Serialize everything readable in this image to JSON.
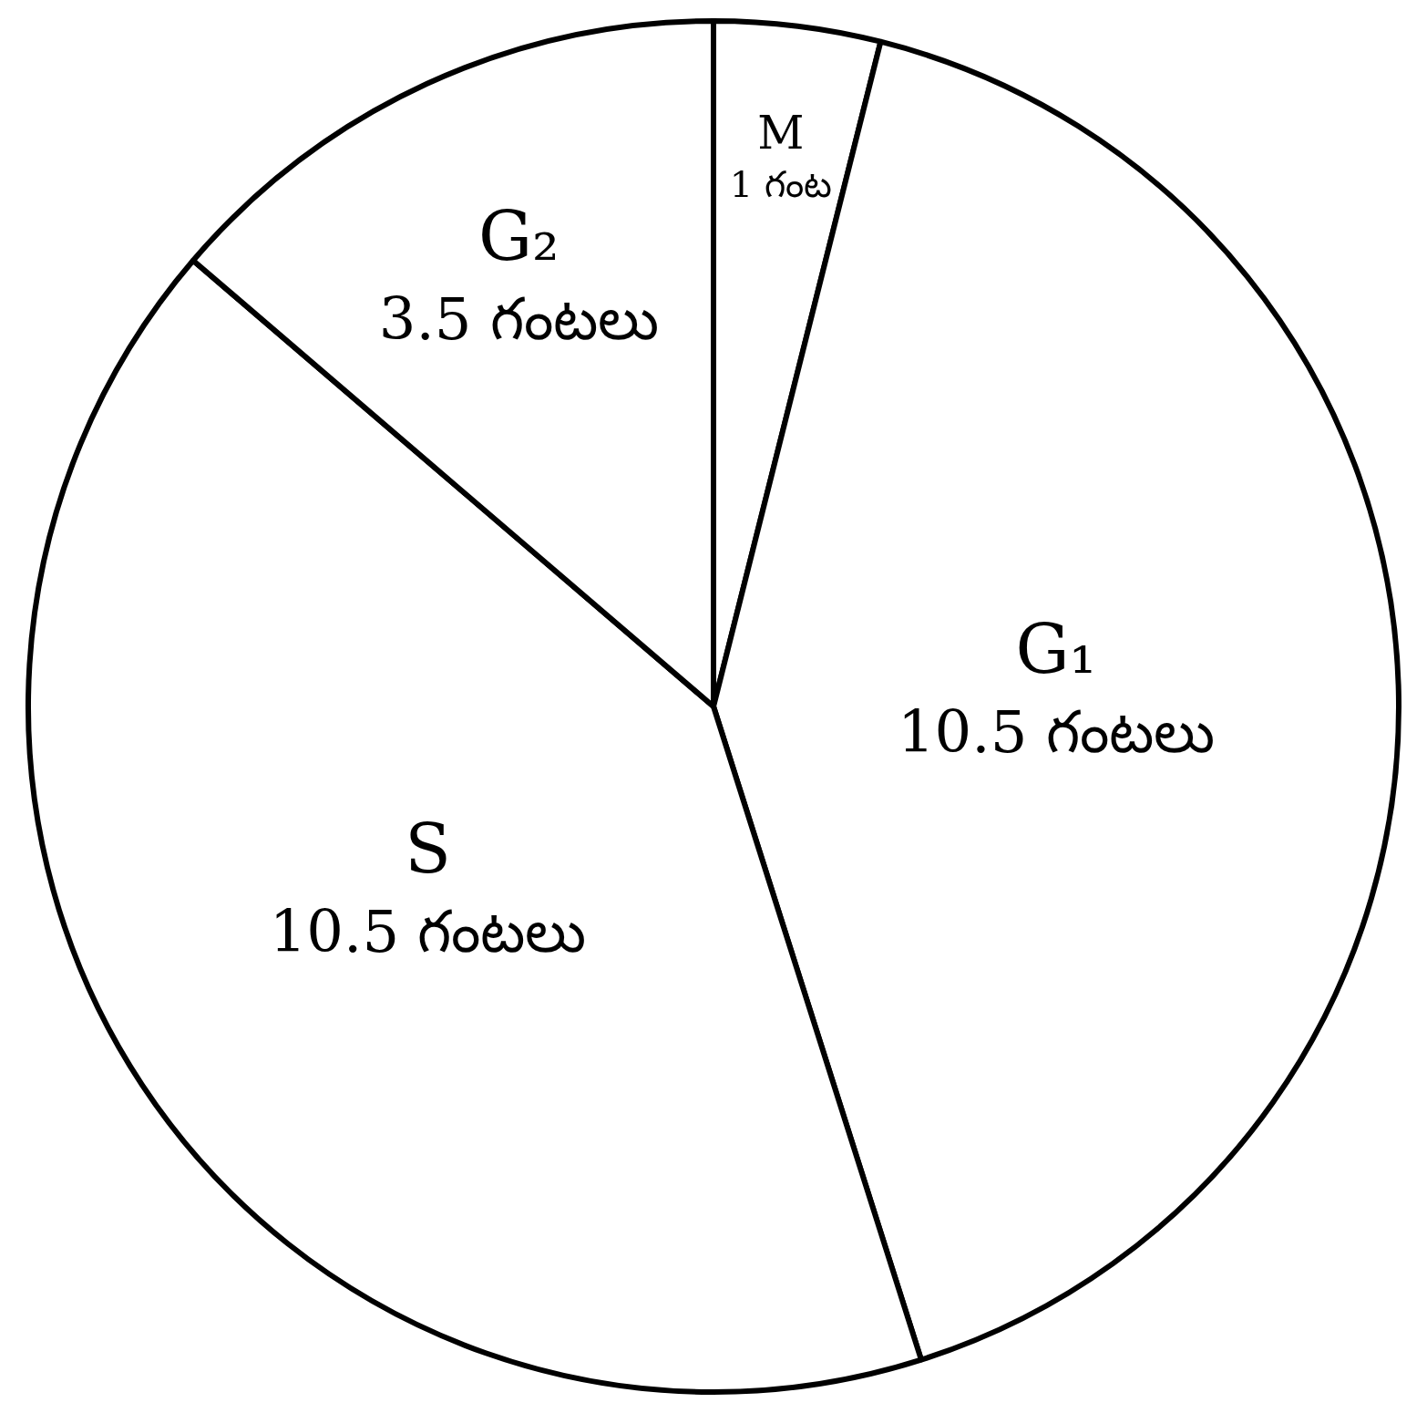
{
  "chart_data": {
    "type": "pie",
    "categories": [
      "M",
      "G₁",
      "S",
      "G₂"
    ],
    "values": [
      1,
      10.5,
      10.5,
      3.5
    ],
    "colors": [
      "#ffffff",
      "#ffffff",
      "#ffffff",
      "#ffffff"
    ],
    "value_labels": [
      "1 గంట",
      "10.5 గంటలు",
      "10.5 గంటలు",
      "3.5 గంటలు"
    ]
  }
}
